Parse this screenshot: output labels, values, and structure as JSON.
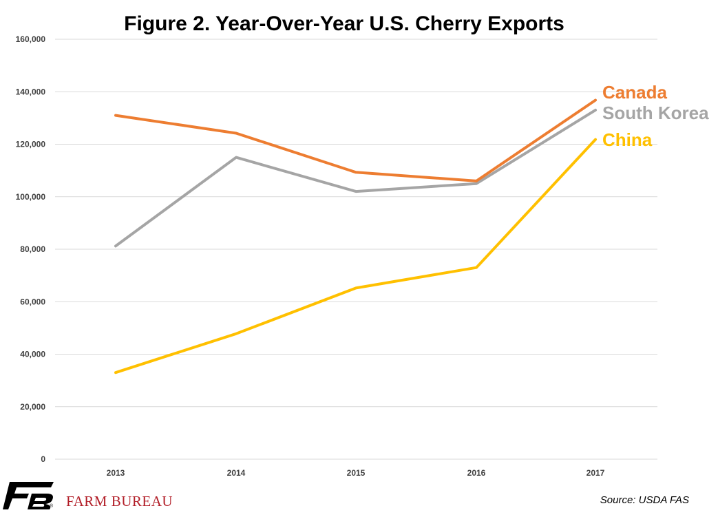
{
  "title": "Figure 2. Year-Over-Year U.S. Cherry Exports",
  "source": "Source: USDA FAS",
  "brand": {
    "name": "FARM BUREAU",
    "registered": "®",
    "logo_icon": "farm-bureau-fb-logo-icon",
    "color": "#b21e28"
  },
  "chart_data": {
    "type": "line",
    "title": "Figure 2. Year-Over-Year U.S. Cherry Exports",
    "xlabel": "",
    "ylabel": "",
    "x": [
      "2013",
      "2014",
      "2015",
      "2016",
      "2017"
    ],
    "ylim": [
      0,
      160000
    ],
    "yticks": [
      "0",
      "20,000",
      "40,000",
      "60,000",
      "80,000",
      "100,000",
      "120,000",
      "140,000",
      "160,000"
    ],
    "ytick_values": [
      0,
      20000,
      40000,
      60000,
      80000,
      100000,
      120000,
      140000,
      160000
    ],
    "grid": true,
    "legend": "direct labels at right end of lines",
    "series": [
      {
        "name": "Canada",
        "color": "#ed7d31",
        "values": [
          131000,
          124200,
          109300,
          106000,
          136800
        ]
      },
      {
        "name": "South Korea",
        "color": "#a5a5a5",
        "values": [
          81200,
          115000,
          102000,
          105000,
          133000
        ]
      },
      {
        "name": "China",
        "color": "#ffc000",
        "values": [
          33000,
          47800,
          65200,
          73000,
          121800
        ]
      }
    ]
  }
}
